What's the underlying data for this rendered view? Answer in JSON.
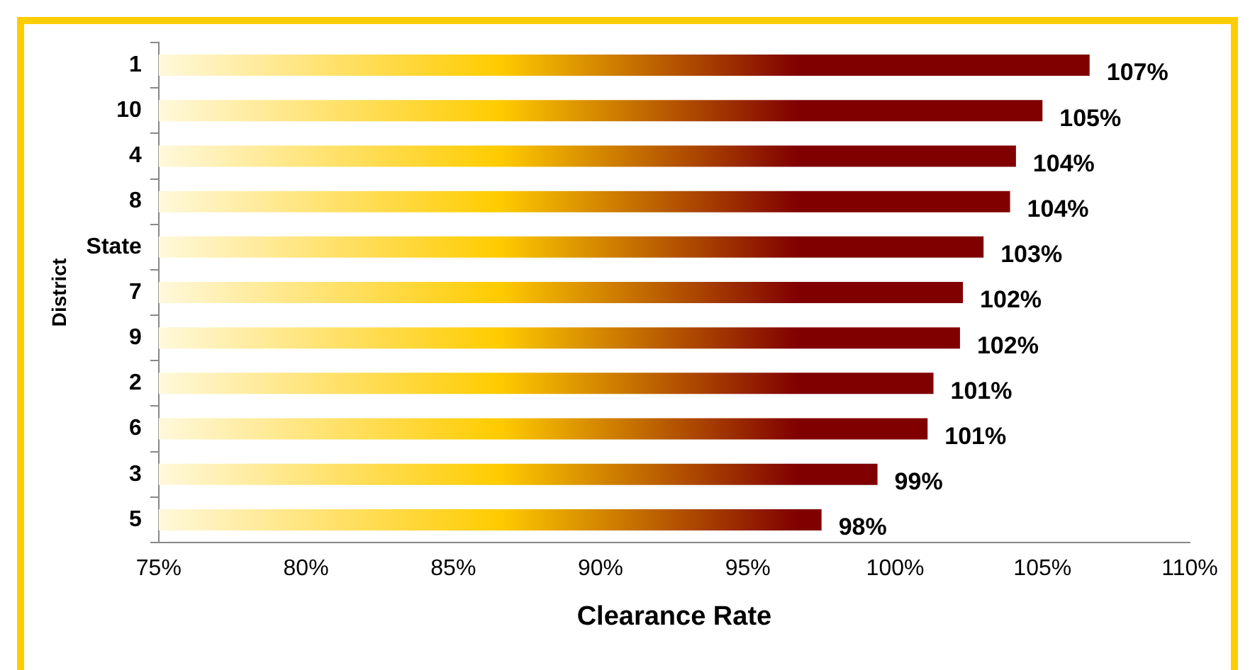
{
  "chart_data": {
    "type": "bar",
    "orientation": "horizontal",
    "xlabel": "Clearance Rate",
    "ylabel": "District",
    "categories": [
      "1",
      "10",
      "4",
      "8",
      "State",
      "7",
      "9",
      "2",
      "6",
      "3",
      "5"
    ],
    "values": [
      106.6,
      105.0,
      104.1,
      103.9,
      103.0,
      102.3,
      102.2,
      101.3,
      101.1,
      99.4,
      97.5
    ],
    "value_labels": [
      "107%",
      "105%",
      "104%",
      "104%",
      "103%",
      "102%",
      "102%",
      "101%",
      "101%",
      "99%",
      "98%"
    ],
    "color": "#800000",
    "xlim": [
      75,
      110
    ],
    "xticks": [
      {
        "value": 75,
        "label": "75%"
      },
      {
        "value": 80,
        "label": "80%"
      },
      {
        "value": 85,
        "label": "85%"
      },
      {
        "value": 90,
        "label": "90%"
      },
      {
        "value": 95,
        "label": "95%"
      },
      {
        "value": 100,
        "label": "100%"
      },
      {
        "value": 105,
        "label": "105%"
      },
      {
        "value": 110,
        "label": "110%"
      }
    ],
    "grid": false,
    "legend": false
  }
}
